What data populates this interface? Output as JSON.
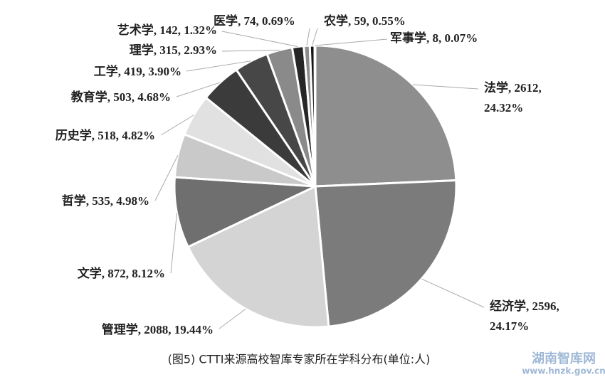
{
  "chart_data": {
    "type": "pie",
    "title": "(图5)  CTTI来源高校智库专家所在学科分布(单位:人)",
    "values": [
      2612,
      2596,
      2088,
      872,
      535,
      518,
      503,
      419,
      315,
      142,
      74,
      59,
      8
    ],
    "value_labels": [
      "法学, 2612,\n24.32%",
      "经济学, 2596,\n24.17%",
      "管理学, 2088, 19.44%",
      "文学, 872, 8.12%",
      "哲学, 535, 4.98%",
      "历史学, 518, 4.82%",
      "教育学, 503, 4.68%",
      "工学, 419, 3.90%",
      "理学, 315, 2.93%",
      "艺术学, 142, 1.32%",
      "医学, 74, 0.69%",
      "农学, 59, 0.55%",
      "军事学, 8, 0.07%"
    ],
    "colors": [
      "#8e8e8e",
      "#7b7b7b",
      "#d4d4d4",
      "#6f6f6f",
      "#c9c9c9",
      "#e1e1e1",
      "#3b3b3b",
      "#474747",
      "#8a8a8a",
      "#262626",
      "#8c8c8c",
      "#151515",
      "#b0b0b0"
    ]
  },
  "watermark": {
    "name": "湖南智库网",
    "url": "www.hnzk.gov.cn"
  }
}
